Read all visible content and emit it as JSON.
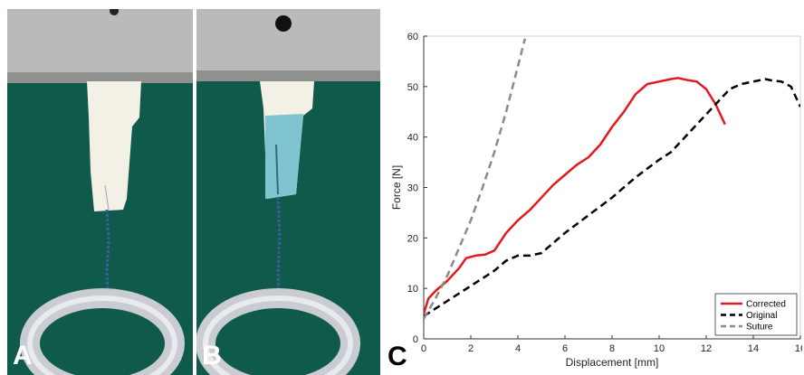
{
  "panels": {
    "a": {
      "label": "A"
    },
    "b": {
      "label": "B"
    },
    "c": {
      "label": "C"
    }
  },
  "colors": {
    "background_green": "#0f5a4a",
    "clamp_metal": "#b9bbb8",
    "tissue_white": "#f3f0e6",
    "tissue_blue": "#7fc4cf",
    "suture_blue": "#3b5f9e",
    "ring_metal": "#c9ccd0",
    "corrected": "#e3191c",
    "original": "#000000",
    "suture": "#8a8a8a"
  },
  "chart_data": {
    "type": "line",
    "title": "",
    "xlabel": "Displacement [mm]",
    "ylabel": "Force [N]",
    "xlim": [
      0,
      16
    ],
    "ylim": [
      0,
      60
    ],
    "xticks": [
      0,
      2,
      4,
      6,
      8,
      10,
      12,
      14,
      16
    ],
    "yticks": [
      0,
      10,
      20,
      30,
      40,
      50,
      60
    ],
    "grid": false,
    "legend_position": "bottom-right",
    "series": [
      {
        "name": "Corrected",
        "style": "solid",
        "color": "#e3191c",
        "x": [
          0,
          0.2,
          0.5,
          1.0,
          1.5,
          1.8,
          2.2,
          2.6,
          3.0,
          3.5,
          4.0,
          4.5,
          5.0,
          5.5,
          6.0,
          6.5,
          7.0,
          7.5,
          8.0,
          8.5,
          9.0,
          9.5,
          10.0,
          10.5,
          10.8,
          11.2,
          11.6,
          12.0,
          12.4,
          12.8
        ],
        "y": [
          5,
          8,
          9.5,
          11.5,
          14,
          16,
          16.5,
          16.7,
          17.5,
          21,
          23.5,
          25.5,
          28,
          30.5,
          32.5,
          34.5,
          36,
          38.5,
          42,
          45,
          48.5,
          50.5,
          51,
          51.5,
          51.7,
          51.3,
          51,
          49.5,
          46.5,
          42.5
        ]
      },
      {
        "name": "Original",
        "style": "dashed",
        "color": "#000000",
        "x": [
          0,
          1,
          2,
          3,
          3.5,
          4,
          4.5,
          5,
          5.5,
          6,
          7,
          8,
          9,
          10,
          10.5,
          11,
          11.5,
          12,
          12.5,
          13,
          13.5,
          14,
          14.5,
          14.8,
          15.2,
          15.6,
          16
        ],
        "y": [
          4.5,
          7.5,
          10.5,
          13.5,
          15.5,
          16.5,
          16.5,
          17,
          19,
          21,
          24.5,
          28,
          32,
          35.5,
          37,
          39.5,
          42,
          44.5,
          47,
          49.5,
          50.5,
          51,
          51.5,
          51.2,
          51,
          50,
          46
        ]
      },
      {
        "name": "Suture",
        "style": "dashed",
        "color": "#8a8a8a",
        "x": [
          0,
          0.5,
          1.0,
          1.5,
          2.0,
          2.5,
          3.0,
          3.5,
          4.0,
          4.3
        ],
        "y": [
          4,
          8,
          12.5,
          18,
          23.5,
          30,
          37,
          45,
          54,
          59.5
        ]
      }
    ]
  }
}
